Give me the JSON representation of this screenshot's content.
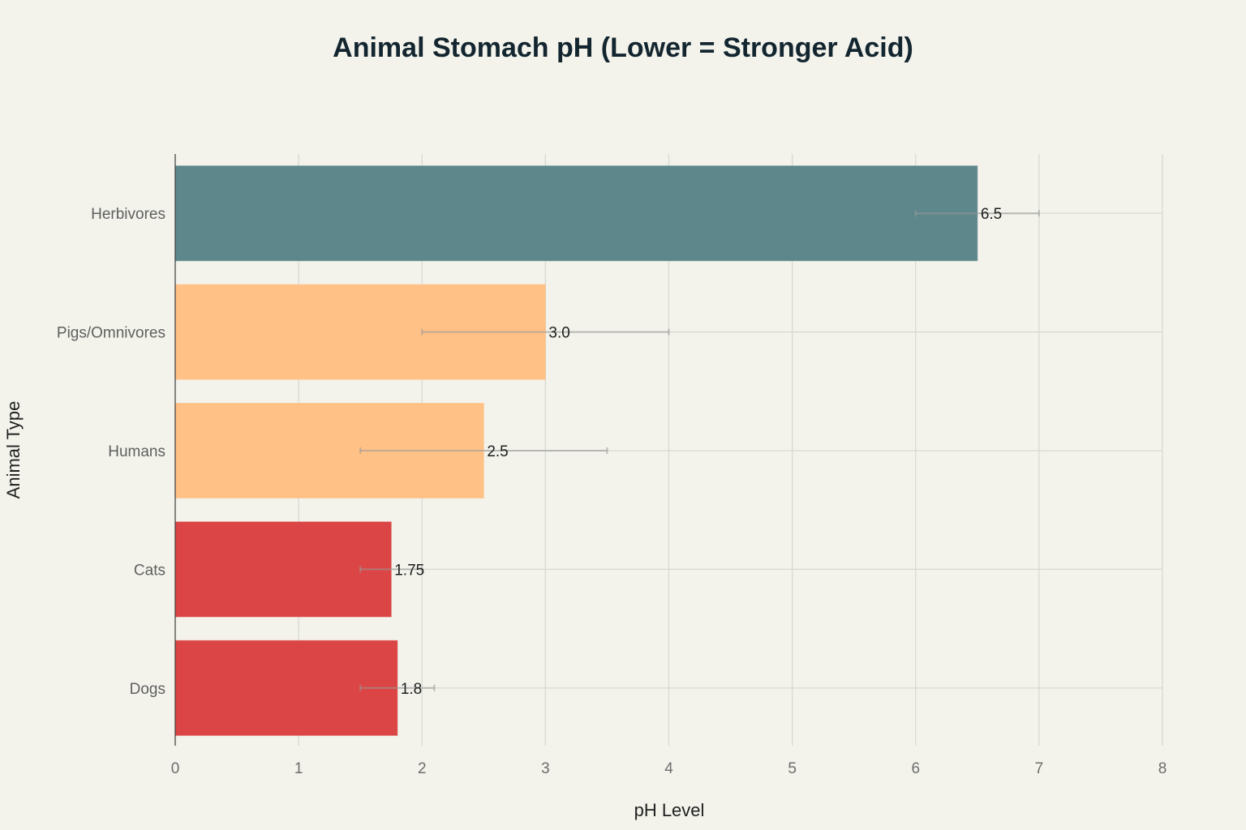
{
  "chart_data": {
    "type": "bar",
    "orientation": "horizontal",
    "title": "Animal Stomach pH (Lower = Stronger Acid)",
    "xlabel": "pH Level",
    "ylabel": "Animal Type",
    "xlim": [
      0,
      8
    ],
    "x_ticks": [
      0,
      1,
      2,
      3,
      4,
      5,
      6,
      7,
      8
    ],
    "grid": true,
    "categories": [
      "Herbivores",
      "Pigs/Omnivores",
      "Humans",
      "Cats",
      "Dogs"
    ],
    "values": [
      6.5,
      3.0,
      2.5,
      1.75,
      1.8
    ],
    "value_labels": [
      "6.5",
      "3.0",
      "2.5",
      "1.75",
      "1.8"
    ],
    "error_ranges": [
      [
        6.0,
        7.0
      ],
      [
        2.0,
        4.0
      ],
      [
        1.5,
        3.5
      ],
      [
        1.5,
        2.0
      ],
      [
        1.5,
        2.1
      ]
    ],
    "colors": [
      "#5e878c",
      "#ffc185",
      "#ffc185",
      "#db4545",
      "#db4545"
    ]
  }
}
